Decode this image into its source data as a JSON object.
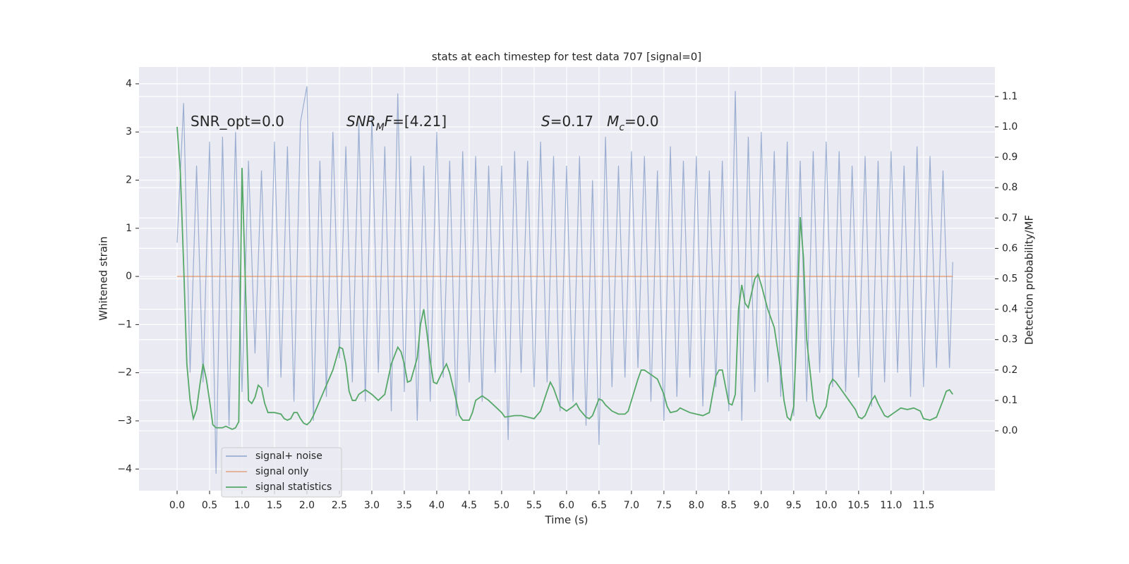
{
  "chart_data": {
    "type": "line",
    "title": "stats at each timestep for test data 707 [signal=0]",
    "xlabel": "Time (s)",
    "ylabel": "Whitened strain",
    "y2label": "Detection probability/MF",
    "xlim": [
      -0.587,
      12.6
    ],
    "ylim": [
      -4.45,
      4.35
    ],
    "y2lim": [
      -0.197,
      1.197
    ],
    "xticks": [
      {
        "value": 0,
        "label": "0.0"
      },
      0.5,
      {
        "value": 1,
        "label": "1.0"
      },
      1.5,
      {
        "value": 2,
        "label": "2.0"
      },
      2.5,
      {
        "value": 3,
        "label": "3.0"
      },
      3.5,
      {
        "value": 4,
        "label": "4.0"
      },
      4.5,
      {
        "value": 5,
        "label": "5.0"
      },
      5.5,
      {
        "value": 6,
        "label": "6.0"
      },
      6.5,
      {
        "value": 7,
        "label": "7.0"
      },
      7.5,
      {
        "value": 8,
        "label": "8.0"
      },
      8.5,
      {
        "value": 9,
        "label": "9.0"
      },
      9.5,
      {
        "value": 10,
        "label": "10.0"
      },
      10.5,
      {
        "value": 11,
        "label": "11.0"
      },
      11.5
    ],
    "yticks": [
      {
        "value": -4,
        "label": "−4"
      },
      {
        "value": -3,
        "label": "−3"
      },
      {
        "value": -2,
        "label": "−2"
      },
      {
        "value": -1,
        "label": "−1"
      },
      0,
      1,
      2,
      3,
      4
    ],
    "y2ticks": [
      {
        "value": 0,
        "label": "0.0"
      },
      0.1,
      0.2,
      0.3,
      0.4,
      0.5,
      0.6,
      0.7,
      0.8,
      0.9,
      {
        "value": 1,
        "label": "1.0"
      },
      1.1
    ],
    "grid": true,
    "legend": "lower left",
    "annotations": [
      {
        "parts": [
          {
            "text": "SNR_opt=0.0",
            "style": "normal"
          }
        ]
      },
      {
        "parts": [
          {
            "text": "SNR",
            "style": "italic"
          },
          {
            "text": "M",
            "style": "italic-sub"
          },
          {
            "text": "F",
            "style": "italic"
          },
          {
            "text": "=[4.21]",
            "style": "normal"
          }
        ]
      },
      {
        "parts": [
          {
            "text": "S",
            "style": "italic"
          },
          {
            "text": "=0.17   ",
            "style": "normal"
          },
          {
            "text": "M",
            "style": "italic"
          },
          {
            "text": "c",
            "style": "italic-sub"
          },
          {
            "text": "=0.0",
            "style": "normal"
          }
        ]
      }
    ],
    "series": [
      {
        "name": "signal+ noise",
        "color": "#4c72b0",
        "axis": "y",
        "x": [
          0,
          0.1,
          0.2,
          0.3,
          0.4,
          0.5,
          0.6,
          0.7,
          0.8,
          0.9,
          1,
          1.1,
          1.2,
          1.3,
          1.4,
          1.5,
          1.6,
          1.7,
          1.8,
          1.9,
          2,
          2.1,
          2.2,
          2.3,
          2.4,
          2.5,
          2.6,
          2.7,
          2.8,
          2.9,
          3,
          3.1,
          3.2,
          3.3,
          3.4,
          3.5,
          3.6,
          3.7,
          3.8,
          3.9,
          4,
          4.1,
          4.2,
          4.3,
          4.4,
          4.5,
          4.6,
          4.7,
          4.8,
          4.9,
          5,
          5.1,
          5.2,
          5.3,
          5.4,
          5.5,
          5.6,
          5.7,
          5.8,
          5.9,
          6,
          6.1,
          6.2,
          6.3,
          6.4,
          6.5,
          6.6,
          6.7,
          6.8,
          6.9,
          7,
          7.1,
          7.2,
          7.3,
          7.4,
          7.5,
          7.6,
          7.7,
          7.8,
          7.9,
          8,
          8.1,
          8.2,
          8.3,
          8.4,
          8.5,
          8.6,
          8.7,
          8.8,
          8.9,
          9,
          9.1,
          9.2,
          9.3,
          9.4,
          9.5,
          9.6,
          9.7,
          9.8,
          9.9,
          10,
          10.1,
          10.2,
          10.3,
          10.4,
          10.5,
          10.6,
          10.7,
          10.8,
          10.9,
          11,
          11.1,
          11.2,
          11.3,
          11.4,
          11.5,
          11.6,
          11.7,
          11.8,
          11.9,
          11.95
        ],
        "values": [
          0.7,
          3.6,
          -2.0,
          2.3,
          -2.2,
          2.8,
          -4.1,
          2.9,
          -3.1,
          3.0,
          -2.4,
          2.4,
          -1.6,
          2.2,
          -2.3,
          2.8,
          -2.1,
          2.7,
          -2.6,
          3.2,
          3.95,
          -3.0,
          2.4,
          -2.5,
          3.0,
          -1.7,
          2.7,
          -2.2,
          3.2,
          -2.6,
          3.3,
          -2.0,
          2.7,
          -2.8,
          3.8,
          -2.4,
          2.5,
          -3.0,
          2.3,
          -2.6,
          3.0,
          -2.1,
          2.4,
          -2.9,
          2.6,
          -2.2,
          2.5,
          -2.6,
          2.3,
          -2.0,
          2.3,
          -3.4,
          2.6,
          -2.0,
          2.4,
          -2.3,
          2.8,
          -2.2,
          2.5,
          -2.8,
          2.3,
          -2.6,
          2.5,
          -3.1,
          2.0,
          -3.5,
          2.9,
          -2.3,
          2.3,
          -2.1,
          2.6,
          -1.9,
          2.5,
          -2.6,
          2.2,
          -3.0,
          2.7,
          -2.5,
          2.4,
          -2.1,
          2.5,
          -2.7,
          2.2,
          -2.3,
          2.4,
          -2.8,
          3.85,
          -3.0,
          2.9,
          -2.4,
          3.0,
          -2.2,
          2.6,
          -2.5,
          2.8,
          -2.9,
          2.4,
          -2.6,
          2.6,
          -2.0,
          2.8,
          -2.3,
          2.6,
          -2.4,
          2.3,
          -2.1,
          2.5,
          -2.7,
          2.4,
          -2.2,
          2.6,
          -2.0,
          2.3,
          -2.5,
          2.7,
          -2.3,
          2.5,
          -1.9,
          2.2,
          -1.9,
          0.3
        ]
      },
      {
        "name": "signal only",
        "color": "#dd8452",
        "axis": "y",
        "x": [
          0,
          11.95
        ],
        "values": [
          0,
          0
        ]
      },
      {
        "name": "signal statistics",
        "color": "#55a868",
        "axis": "y2",
        "x": [
          0,
          0.05,
          0.1,
          0.15,
          0.2,
          0.25,
          0.3,
          0.35,
          0.4,
          0.45,
          0.5,
          0.55,
          0.6,
          0.7,
          0.75,
          0.8,
          0.85,
          0.9,
          0.95,
          1,
          1.05,
          1.1,
          1.15,
          1.2,
          1.25,
          1.3,
          1.35,
          1.4,
          1.5,
          1.6,
          1.65,
          1.7,
          1.75,
          1.8,
          1.85,
          1.9,
          1.95,
          2,
          2.05,
          2.1,
          2.2,
          2.3,
          2.4,
          2.5,
          2.55,
          2.6,
          2.65,
          2.7,
          2.75,
          2.8,
          2.9,
          3,
          3.1,
          3.2,
          3.3,
          3.4,
          3.45,
          3.5,
          3.55,
          3.6,
          3.7,
          3.75,
          3.8,
          3.85,
          3.9,
          3.95,
          4,
          4.1,
          4.15,
          4.2,
          4.3,
          4.35,
          4.4,
          4.5,
          4.55,
          4.6,
          4.7,
          4.8,
          4.9,
          5,
          5.05,
          5.2,
          5.3,
          5.4,
          5.5,
          5.6,
          5.7,
          5.75,
          5.8,
          5.9,
          6,
          6.1,
          6.15,
          6.2,
          6.3,
          6.35,
          6.4,
          6.5,
          6.55,
          6.6,
          6.7,
          6.8,
          6.9,
          6.95,
          7,
          7.1,
          7.15,
          7.2,
          7.3,
          7.4,
          7.5,
          7.55,
          7.6,
          7.7,
          7.75,
          7.8,
          7.9,
          8,
          8.1,
          8.2,
          8.3,
          8.35,
          8.4,
          8.5,
          8.55,
          8.6,
          8.65,
          8.7,
          8.75,
          8.8,
          8.9,
          8.95,
          9,
          9.1,
          9.2,
          9.3,
          9.35,
          9.4,
          9.45,
          9.5,
          9.55,
          9.6,
          9.65,
          9.7,
          9.8,
          9.85,
          9.9,
          10,
          10.05,
          10.1,
          10.15,
          10.25,
          10.35,
          10.45,
          10.5,
          10.55,
          10.6,
          10.7,
          10.75,
          10.8,
          10.9,
          10.95,
          11.05,
          11.15,
          11.25,
          11.35,
          11.45,
          11.5,
          11.6,
          11.7,
          11.8,
          11.85,
          11.9,
          11.95
        ],
        "values": [
          1.0,
          0.85,
          0.55,
          0.22,
          0.1,
          0.04,
          0.07,
          0.15,
          0.22,
          0.17,
          0.1,
          0.02,
          0.01,
          0.01,
          0.015,
          0.01,
          0.005,
          0.01,
          0.03,
          0.865,
          0.5,
          0.1,
          0.09,
          0.11,
          0.15,
          0.14,
          0.09,
          0.06,
          0.06,
          0.055,
          0.04,
          0.035,
          0.04,
          0.06,
          0.06,
          0.04,
          0.025,
          0.02,
          0.03,
          0.05,
          0.1,
          0.15,
          0.2,
          0.275,
          0.27,
          0.22,
          0.13,
          0.1,
          0.1,
          0.12,
          0.135,
          0.12,
          0.1,
          0.12,
          0.22,
          0.275,
          0.26,
          0.22,
          0.16,
          0.165,
          0.24,
          0.35,
          0.4,
          0.32,
          0.23,
          0.16,
          0.155,
          0.2,
          0.22,
          0.19,
          0.1,
          0.05,
          0.035,
          0.035,
          0.06,
          0.1,
          0.115,
          0.1,
          0.08,
          0.06,
          0.045,
          0.05,
          0.05,
          0.045,
          0.04,
          0.065,
          0.13,
          0.16,
          0.14,
          0.08,
          0.065,
          0.08,
          0.09,
          0.07,
          0.045,
          0.04,
          0.05,
          0.105,
          0.1,
          0.085,
          0.065,
          0.055,
          0.055,
          0.065,
          0.1,
          0.17,
          0.2,
          0.2,
          0.185,
          0.17,
          0.12,
          0.08,
          0.06,
          0.065,
          0.075,
          0.07,
          0.06,
          0.055,
          0.05,
          0.06,
          0.18,
          0.2,
          0.2,
          0.09,
          0.085,
          0.12,
          0.4,
          0.48,
          0.42,
          0.405,
          0.5,
          0.515,
          0.48,
          0.4,
          0.34,
          0.2,
          0.1,
          0.045,
          0.035,
          0.08,
          0.35,
          0.703,
          0.57,
          0.3,
          0.1,
          0.05,
          0.04,
          0.08,
          0.15,
          0.17,
          0.16,
          0.13,
          0.1,
          0.07,
          0.045,
          0.04,
          0.05,
          0.1,
          0.115,
          0.09,
          0.05,
          0.045,
          0.06,
          0.075,
          0.07,
          0.075,
          0.065,
          0.04,
          0.035,
          0.045,
          0.1,
          0.13,
          0.135,
          0.12
        ]
      }
    ]
  }
}
